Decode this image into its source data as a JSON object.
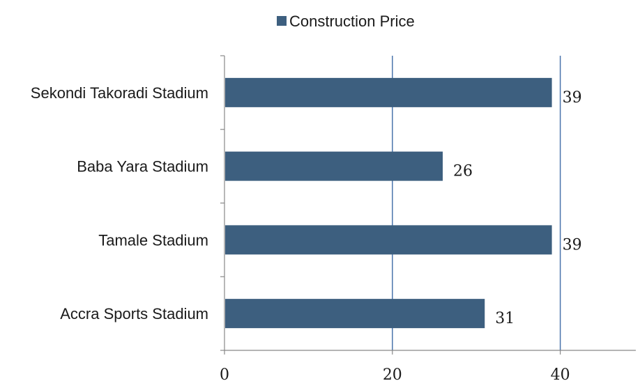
{
  "chart_data": {
    "type": "bar",
    "orientation": "horizontal",
    "categories": [
      "Sekondi Takoradi Stadium",
      "Baba Yara Stadium",
      "Tamale Stadium",
      "Accra Sports Stadium"
    ],
    "series": [
      {
        "name": "Construction Price",
        "values": [
          39,
          26,
          39,
          31
        ],
        "color": "#3d5f7f"
      }
    ],
    "data_labels": [
      "39",
      "26",
      "39",
      "31"
    ],
    "x_ticks": [
      "0",
      "20",
      "40"
    ],
    "xlim": [
      0,
      49
    ],
    "grid": true,
    "gridline_color": "#4a74ac",
    "legend_position": "top"
  }
}
